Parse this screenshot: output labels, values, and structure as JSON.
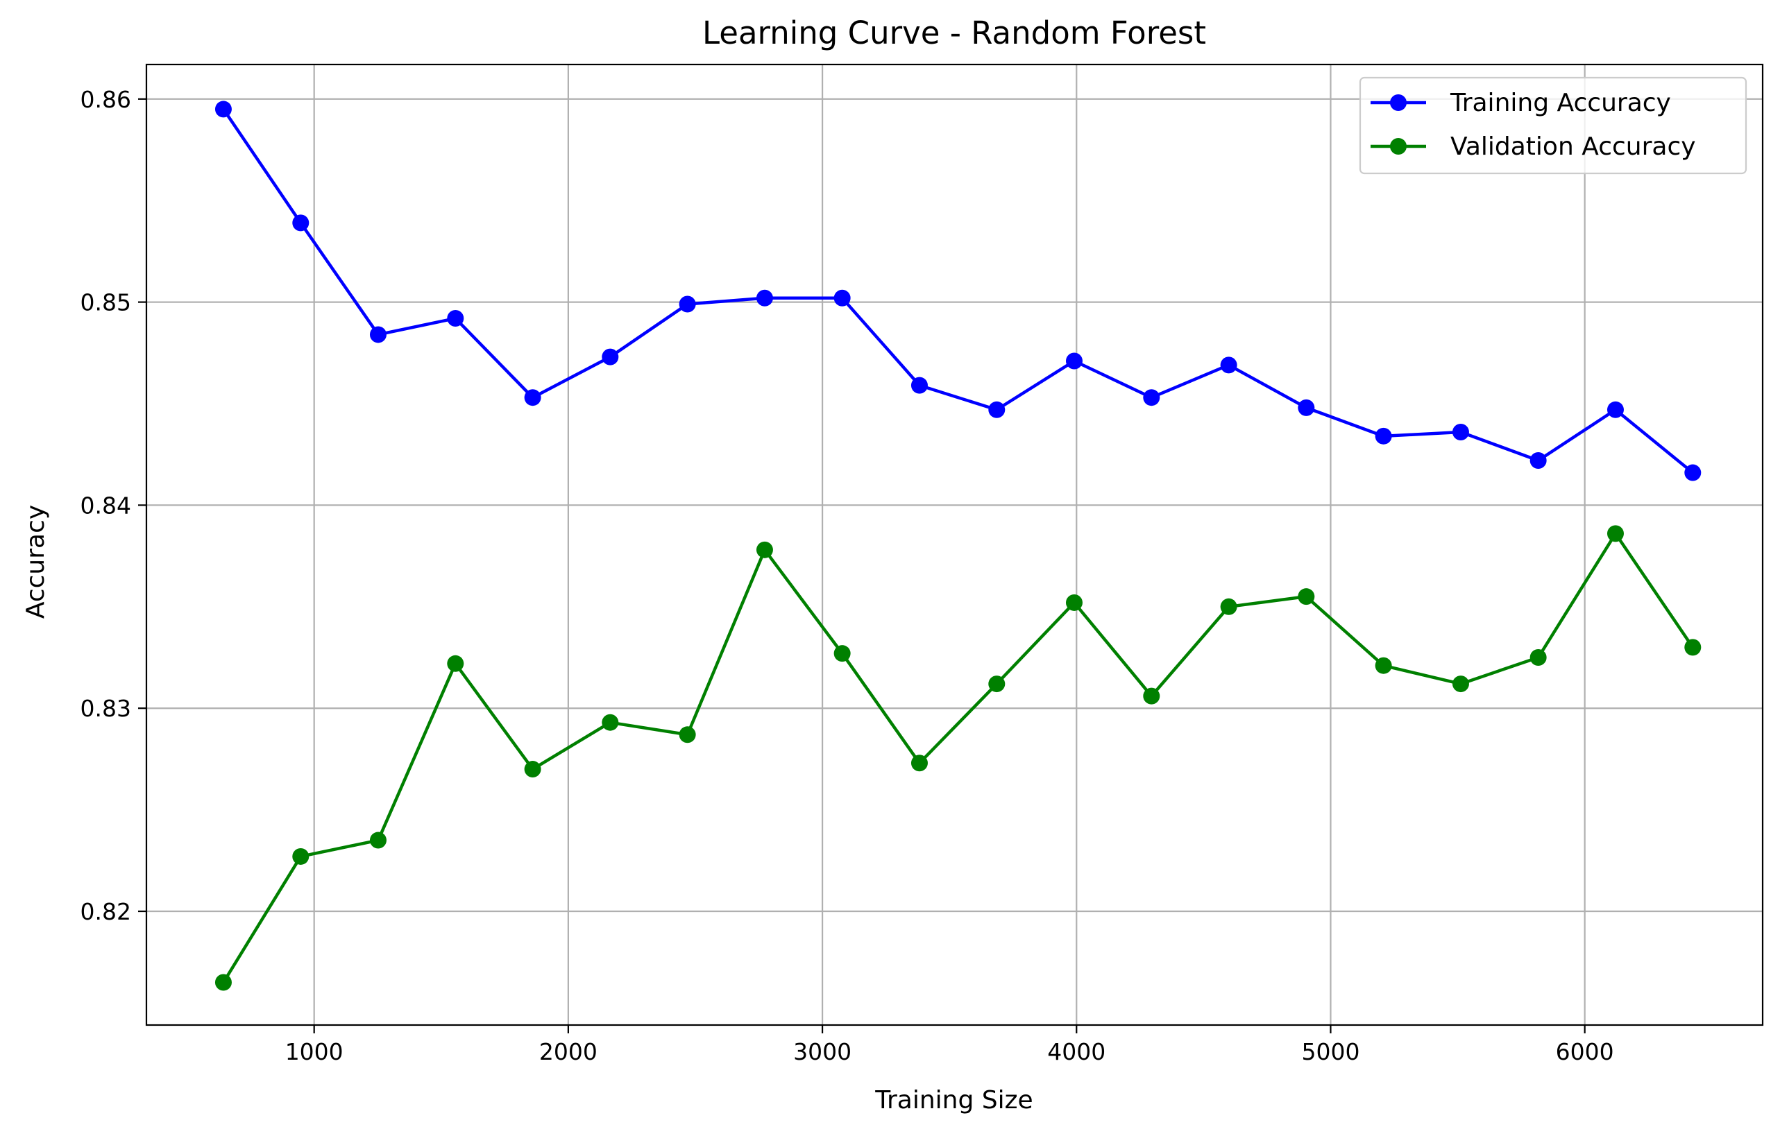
{
  "chart_data": {
    "type": "line",
    "title": "Learning Curve - Random Forest",
    "xlabel": "Training Size",
    "ylabel": "Accuracy",
    "xlim": [
      340,
      6700
    ],
    "ylim": [
      0.8144,
      0.8617
    ],
    "xticks": [
      1000,
      2000,
      3000,
      4000,
      5000,
      6000
    ],
    "yticks": [
      0.82,
      0.83,
      0.84,
      0.85,
      0.86
    ],
    "xtick_labels": [
      "1000",
      "2000",
      "3000",
      "4000",
      "5000",
      "6000"
    ],
    "ytick_labels": [
      "0.82",
      "0.83",
      "0.84",
      "0.85",
      "0.86"
    ],
    "grid": true,
    "legend_position": "top-right",
    "x": [
      643,
      947,
      1252,
      1556,
      1860,
      2165,
      2469,
      2773,
      3078,
      3382,
      3686,
      3991,
      4295,
      4599,
      4904,
      5208,
      5512,
      5817,
      6121,
      6425
    ],
    "series": [
      {
        "name": "Training Accuracy",
        "color": "#0000ff",
        "marker": "circle",
        "values": [
          0.8595,
          0.8539,
          0.8484,
          0.8492,
          0.8453,
          0.8473,
          0.8499,
          0.8502,
          0.8502,
          0.8459,
          0.8447,
          0.8471,
          0.8453,
          0.8469,
          0.8448,
          0.8434,
          0.8436,
          0.8422,
          0.8447,
          0.8416
        ]
      },
      {
        "name": "Validation Accuracy",
        "color": "#008000",
        "marker": "circle",
        "values": [
          0.8165,
          0.8227,
          0.8235,
          0.8322,
          0.827,
          0.8293,
          0.8287,
          0.8378,
          0.8327,
          0.8273,
          0.8312,
          0.8352,
          0.8306,
          0.835,
          0.8355,
          0.8321,
          0.8312,
          0.8325,
          0.8386,
          0.833
        ]
      }
    ]
  }
}
